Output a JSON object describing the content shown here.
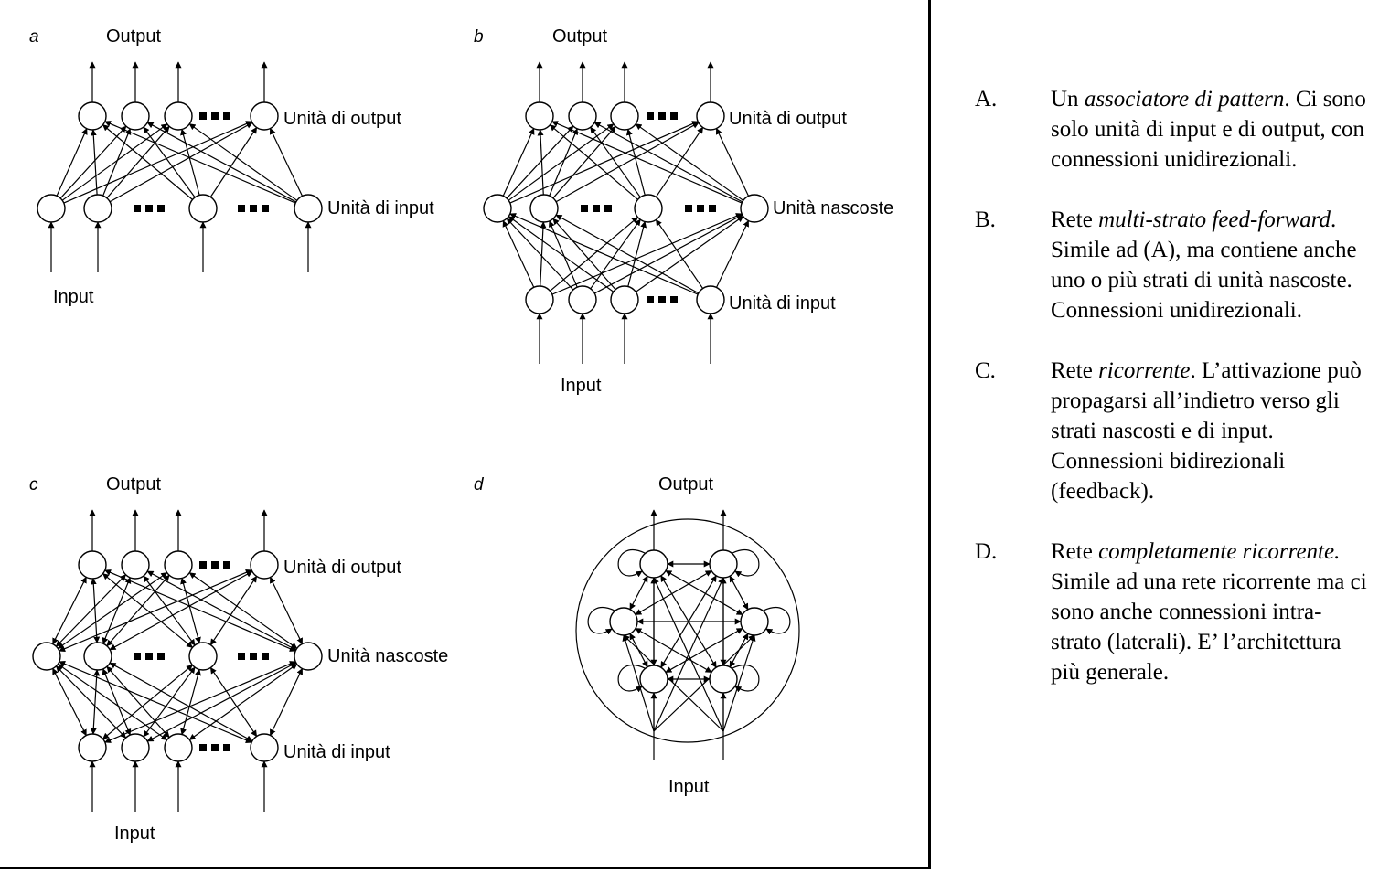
{
  "figure": {
    "panels": [
      {
        "letter": "a",
        "output": "Output",
        "input": "Input",
        "layers": [
          "Unità di output",
          "Unità di input"
        ]
      },
      {
        "letter": "b",
        "output": "Output",
        "input": "Input",
        "layers": [
          "Unità di output",
          "Unità nascoste",
          "Unità di input"
        ]
      },
      {
        "letter": "c",
        "output": "Output",
        "input": "Input",
        "layers": [
          "Unità di output",
          "Unità nascoste",
          "Unità di input"
        ]
      },
      {
        "letter": "d",
        "output": "Output",
        "input": "Input",
        "layers": []
      }
    ]
  },
  "captions": [
    {
      "letter": "A.",
      "title": "associatore di pattern",
      "prefix": "Un ",
      "text": ". Ci sono solo unità di input e di output, con connessioni unidirezionali."
    },
    {
      "letter": "B.",
      "title": "multi-strato feed-forward",
      "prefix": "Rete ",
      "text": ". Simile ad (A), ma contiene anche uno o più strati di unità nascoste. Connessioni unidirezionali."
    },
    {
      "letter": "C.",
      "title": "ricorrente",
      "prefix": "Rete ",
      "text": ". L’attivazione può propagarsi all’indietro verso gli strati nascosti e di input. Connessioni bidirezionali (feedback)."
    },
    {
      "letter": "D.",
      "title": "completamente ricorrente.",
      "prefix": "Rete ",
      "text": " Simile ad una rete ricorrente ma ci sono anche connessioni intra-strato (laterali). E’ l’architettura più generale."
    }
  ]
}
